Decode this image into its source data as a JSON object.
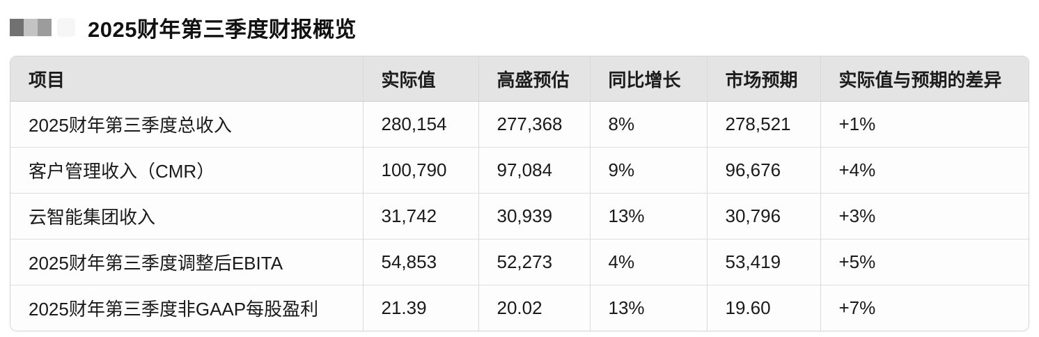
{
  "colors": {
    "header_bg": "#e4e4e4",
    "row_bg": "#fdfdfd",
    "border": "#d4d4d4",
    "text": "#1a1a1a"
  },
  "header": {
    "title": "2025财年第三季度财报概览"
  },
  "table": {
    "columns": [
      "项目",
      "实际值",
      "高盛预估",
      "同比增长",
      "市场预期",
      "实际值与预期的差异"
    ],
    "rows": [
      {
        "item": "2025财年第三季度总收入",
        "actual": "280,154",
        "goldman_estimate": "277,368",
        "yoy_growth": "8%",
        "market_expectation": "278,521",
        "actual_vs_expected_diff": "+1%"
      },
      {
        "item": "客户管理收入（CMR）",
        "actual": "100,790",
        "goldman_estimate": "97,084",
        "yoy_growth": "9%",
        "market_expectation": "96,676",
        "actual_vs_expected_diff": "+4%"
      },
      {
        "item": "云智能集团收入",
        "actual": "31,742",
        "goldman_estimate": "30,939",
        "yoy_growth": "13%",
        "market_expectation": "30,796",
        "actual_vs_expected_diff": "+3%"
      },
      {
        "item": "2025财年第三季度调整后EBITA",
        "actual": "54,853",
        "goldman_estimate": "52,273",
        "yoy_growth": "4%",
        "market_expectation": "53,419",
        "actual_vs_expected_diff": "+5%"
      },
      {
        "item": "2025财年第三季度非GAAP每股盈利",
        "actual": "21.39",
        "goldman_estimate": "20.02",
        "yoy_growth": "13%",
        "market_expectation": "19.60",
        "actual_vs_expected_diff": "+7%"
      }
    ]
  }
}
